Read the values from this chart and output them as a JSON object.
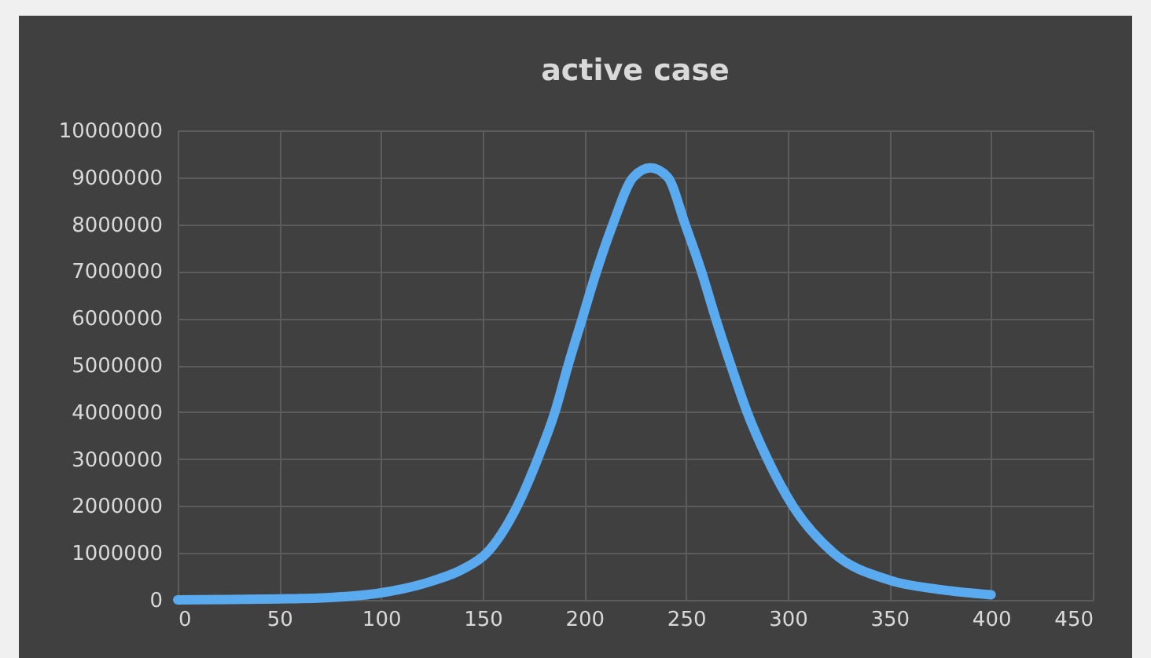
{
  "chart_data": {
    "type": "line",
    "title": "active case",
    "x": [
      0,
      25,
      50,
      75,
      100,
      125,
      140,
      152,
      167,
      177,
      185.5,
      192,
      199,
      206,
      214,
      224,
      232.5,
      241,
      249.5,
      257.5,
      264.5,
      272,
      280,
      290,
      302.5,
      322.5,
      350,
      375,
      400
    ],
    "series": [
      {
        "color": "#5aaaf0",
        "values": [
          0,
          10000,
          20000,
          50000,
          150000,
          400000,
          650000,
          1000000,
          2000000,
          3000000,
          4000000,
          5000000,
          6000000,
          7000000,
          8000000,
          9000000,
          9200000,
          9000000,
          8000000,
          7000000,
          6000000,
          5000000,
          4000000,
          3000000,
          2000000,
          1000000,
          420000,
          220000,
          110000
        ]
      }
    ],
    "xlim": [
      0,
      450
    ],
    "xticks": [
      0,
      50,
      100,
      150,
      200,
      250,
      300,
      350,
      400,
      450
    ],
    "ylim": [
      0,
      10000000
    ],
    "yticks": [
      0,
      1000000,
      2000000,
      3000000,
      4000000,
      5000000,
      6000000,
      7000000,
      8000000,
      9000000,
      10000000
    ],
    "grid": true,
    "line_style": "solid"
  }
}
